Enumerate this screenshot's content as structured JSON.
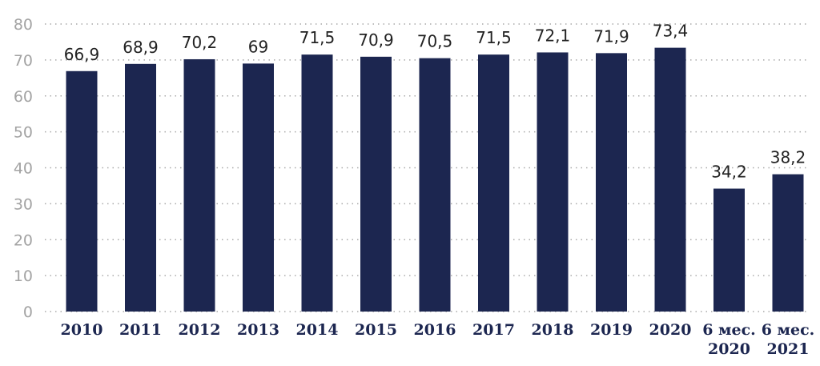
{
  "colors": {
    "bar": "#1c2650",
    "label": "#222222",
    "ytick": "#a3a3a3",
    "xtick": "#1c2650",
    "grid": "#a9a9a9"
  },
  "chart_data": {
    "type": "bar",
    "title": "",
    "xlabel": "",
    "ylabel": "",
    "ylim": [
      0,
      80
    ],
    "yticks": [
      0,
      10,
      20,
      30,
      40,
      50,
      60,
      70,
      80
    ],
    "grid": "horizontal dotted",
    "categories": [
      [
        "2010"
      ],
      [
        "2011"
      ],
      [
        "2012"
      ],
      [
        "2013"
      ],
      [
        "2014"
      ],
      [
        "2015"
      ],
      [
        "2016"
      ],
      [
        "2017"
      ],
      [
        "2018"
      ],
      [
        "2019"
      ],
      [
        "2020"
      ],
      [
        "6 мес.",
        "2020"
      ],
      [
        "6 мес.",
        "2021"
      ]
    ],
    "values": [
      66.9,
      68.9,
      70.2,
      69,
      71.5,
      70.9,
      70.5,
      71.5,
      72.1,
      71.9,
      73.4,
      34.2,
      38.2
    ],
    "value_labels": [
      "66,9",
      "68,9",
      "70,2",
      "69",
      "71,5",
      "70,9",
      "70,5",
      "71,5",
      "72,1",
      "71,9",
      "73,4",
      "34,2",
      "38,2"
    ]
  }
}
